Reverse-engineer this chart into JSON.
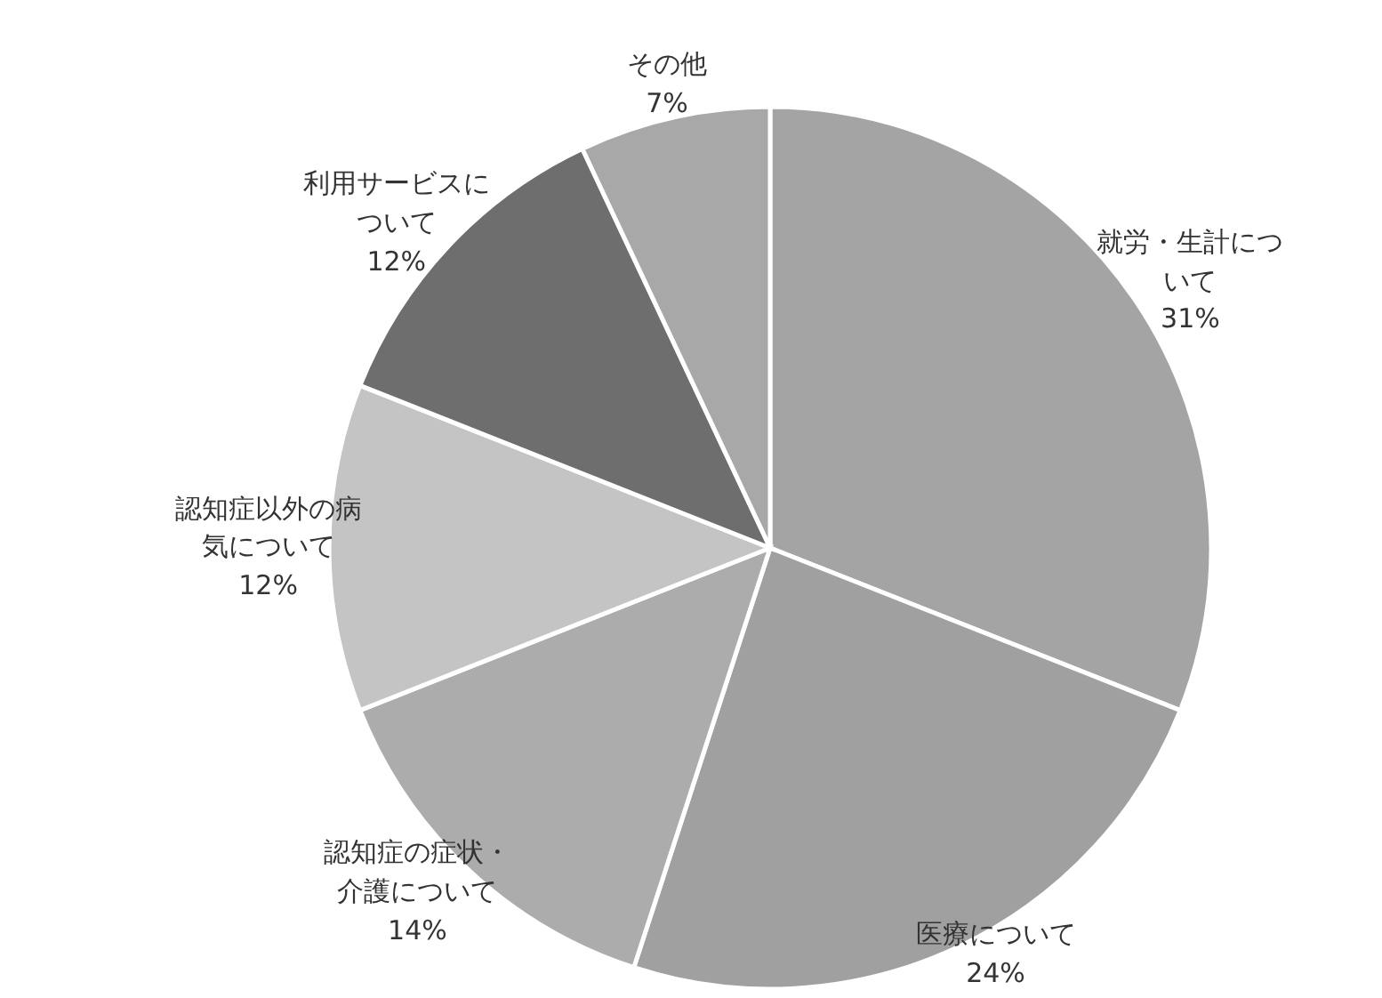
{
  "chart_data": {
    "type": "pie",
    "categories": [
      "就労・生計について",
      "医療について",
      "認知症の症状・介護について",
      "認知症以外の病気について",
      "利用サービスについて",
      "その他"
    ],
    "values": [
      31,
      24,
      14,
      12,
      12,
      7
    ],
    "colors": [
      "#a4a4a4",
      "#a0a0a0",
      "#acacac",
      "#c4c4c4",
      "#6e6e6e",
      "#a8a8a8"
    ],
    "value_labels": [
      "31%",
      "24%",
      "14%",
      "12%",
      "12%",
      "7%"
    ]
  }
}
